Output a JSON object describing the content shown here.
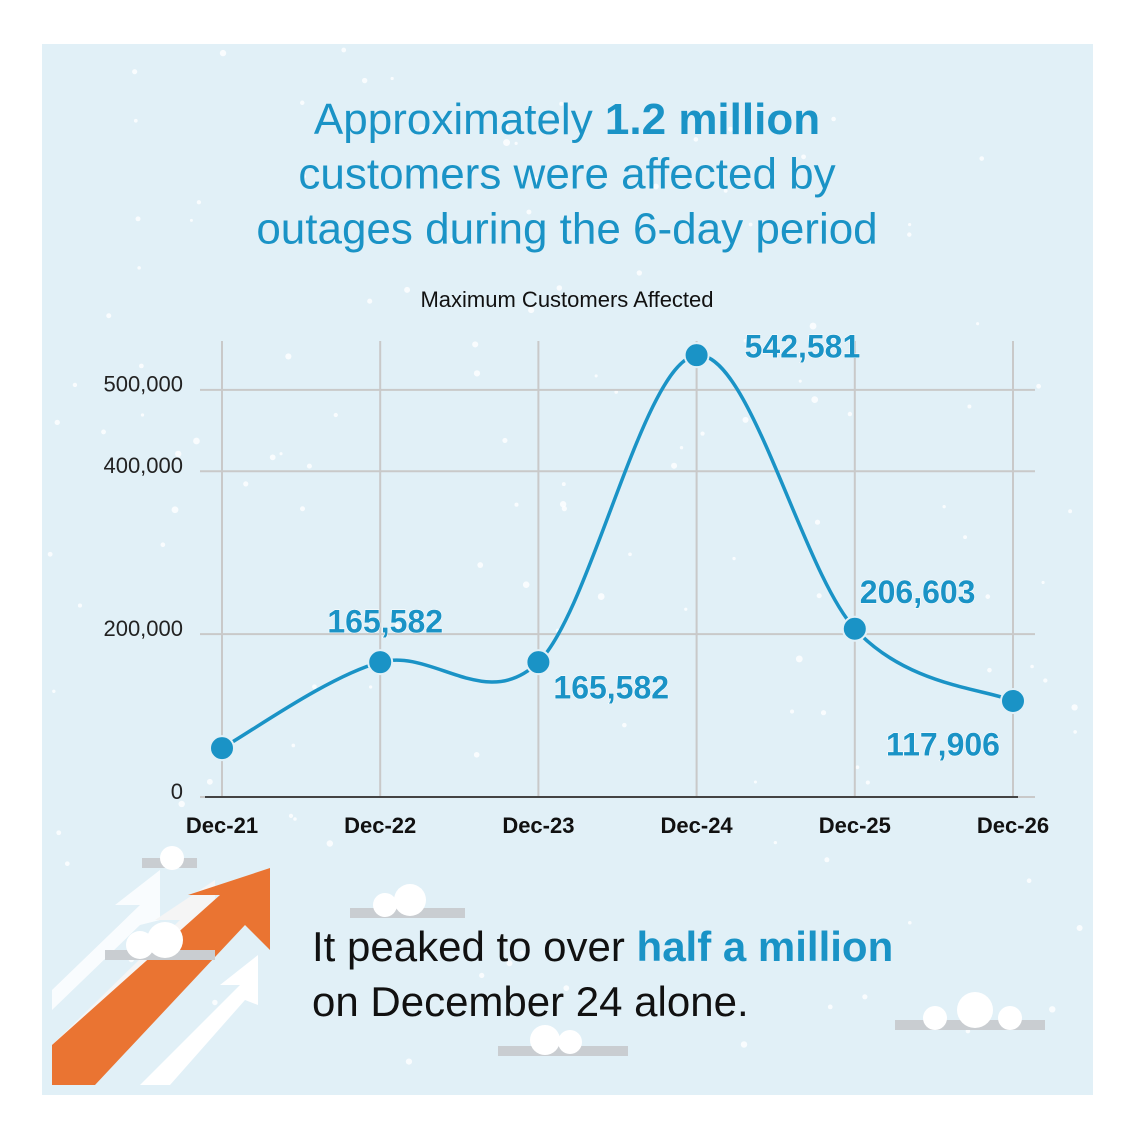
{
  "chart_data": {
    "type": "line",
    "title": [
      "Approximately ",
      "1.2 million",
      "customers were affected by",
      "outages during the 6-day period"
    ],
    "subtitle": "Maximum Customers Affected",
    "categories": [
      "Dec-21",
      "Dec-22",
      "Dec-23",
      "Dec-24",
      "Dec-25",
      "Dec-26"
    ],
    "series": [
      {
        "name": "Maximum Customers Affected",
        "color": "#1a93c6",
        "values": [
          60000,
          165582,
          165582,
          542581,
          206603,
          117906
        ],
        "value_labels": [
          null,
          "165,582",
          "165,582",
          "542,581",
          "206,603",
          "117,906"
        ]
      }
    ],
    "ylim": [
      0,
      560000
    ],
    "yticks": [
      0,
      {
        "value": 200000,
        "label": "200,000"
      },
      {
        "value": 400000,
        "label": "400,000"
      },
      {
        "value": 500000,
        "label": "500,000"
      }
    ],
    "grid": true,
    "annotation": [
      "It peaked to over ",
      "half a million",
      "on December 24 alone."
    ]
  }
}
